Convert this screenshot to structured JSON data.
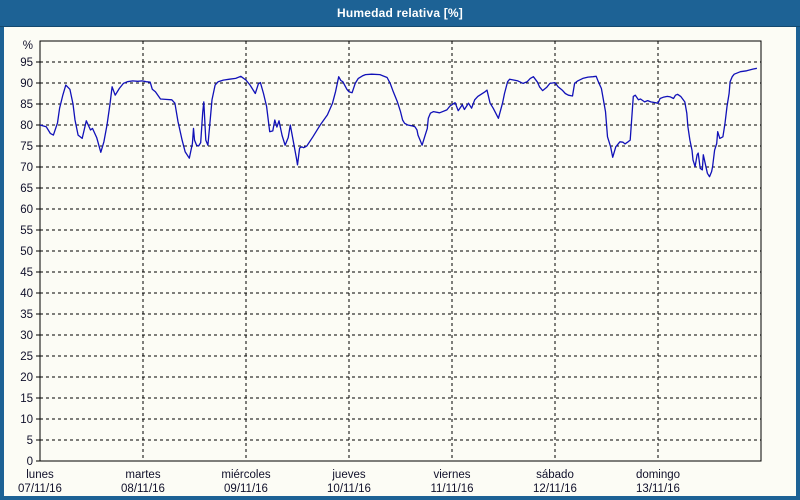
{
  "window": {
    "title": "Humedad relativa [%]"
  },
  "colors": {
    "titlebar_bg": "#1D6295",
    "frame_border": "#1D6295",
    "content_bg": "#FCFCF5",
    "grid": "#000000",
    "axis": "#000000",
    "tick_text": "#10102A",
    "line": "#1111B8"
  },
  "chart_data": {
    "type": "line",
    "title": "Humedad relativa [%]",
    "ylabel": "%",
    "ylim": [
      0,
      100
    ],
    "grid": true,
    "y_ticks": [
      0,
      5,
      10,
      15,
      20,
      25,
      30,
      35,
      40,
      45,
      50,
      55,
      60,
      65,
      70,
      75,
      80,
      85,
      90,
      95
    ],
    "x_days": [
      {
        "name": "lunes",
        "date": "07/11/16"
      },
      {
        "name": "martes",
        "date": "08/11/16"
      },
      {
        "name": "miércoles",
        "date": "09/11/16"
      },
      {
        "name": "jueves",
        "date": "10/11/16"
      },
      {
        "name": "viernes",
        "date": "11/11/16"
      },
      {
        "name": "sábado",
        "date": "12/11/16"
      },
      {
        "name": "domingo",
        "date": "13/11/16"
      }
    ],
    "series": [
      {
        "name": "Humedad relativa [%]",
        "x_unit": "days from lunes 07/11/16 00:00",
        "points": [
          [
            0.0,
            80.0
          ],
          [
            0.06,
            79.6
          ],
          [
            0.1,
            78.0
          ],
          [
            0.13,
            77.6
          ],
          [
            0.17,
            80.5
          ],
          [
            0.19,
            84.0
          ],
          [
            0.22,
            87.0
          ],
          [
            0.25,
            89.5
          ],
          [
            0.29,
            88.5
          ],
          [
            0.32,
            85.0
          ],
          [
            0.34,
            81.2
          ],
          [
            0.37,
            77.6
          ],
          [
            0.41,
            76.8
          ],
          [
            0.45,
            81.0
          ],
          [
            0.49,
            78.8
          ],
          [
            0.51,
            79.2
          ],
          [
            0.55,
            77.0
          ],
          [
            0.59,
            73.5
          ],
          [
            0.62,
            76.0
          ],
          [
            0.65,
            80.0
          ],
          [
            0.68,
            85.0
          ],
          [
            0.7,
            89.1
          ],
          [
            0.73,
            87.1
          ],
          [
            0.77,
            88.7
          ],
          [
            0.81,
            89.9
          ],
          [
            0.85,
            90.3
          ],
          [
            0.9,
            90.5
          ],
          [
            0.95,
            90.4
          ],
          [
            0.99,
            90.5
          ],
          [
            1.03,
            90.3
          ],
          [
            1.07,
            90.2
          ],
          [
            1.09,
            88.5
          ],
          [
            1.12,
            87.9
          ],
          [
            1.17,
            86.2
          ],
          [
            1.22,
            86.1
          ],
          [
            1.28,
            86.0
          ],
          [
            1.31,
            85.2
          ],
          [
            1.34,
            80.8
          ],
          [
            1.38,
            76.4
          ],
          [
            1.41,
            73.6
          ],
          [
            1.45,
            72.1
          ],
          [
            1.48,
            75.6
          ],
          [
            1.49,
            79.2
          ],
          [
            1.5,
            76.4
          ],
          [
            1.52,
            75.2
          ],
          [
            1.54,
            75.0
          ],
          [
            1.56,
            75.8
          ],
          [
            1.58,
            83.0
          ],
          [
            1.59,
            85.5
          ],
          [
            1.61,
            76.4
          ],
          [
            1.63,
            75.2
          ],
          [
            1.65,
            80.4
          ],
          [
            1.67,
            86.0
          ],
          [
            1.7,
            89.5
          ],
          [
            1.73,
            90.3
          ],
          [
            1.78,
            90.7
          ],
          [
            1.84,
            90.9
          ],
          [
            1.9,
            91.1
          ],
          [
            1.95,
            91.6
          ],
          [
            2.0,
            90.7
          ],
          [
            2.04,
            89.5
          ],
          [
            2.07,
            88.3
          ],
          [
            2.09,
            87.5
          ],
          [
            2.12,
            89.8
          ],
          [
            2.14,
            90.1
          ],
          [
            2.17,
            87.5
          ],
          [
            2.2,
            84.4
          ],
          [
            2.23,
            78.4
          ],
          [
            2.26,
            78.6
          ],
          [
            2.28,
            81.2
          ],
          [
            2.3,
            79.5
          ],
          [
            2.32,
            81.0
          ],
          [
            2.35,
            77.5
          ],
          [
            2.38,
            75.2
          ],
          [
            2.41,
            77.0
          ],
          [
            2.43,
            80.0
          ],
          [
            2.46,
            76.0
          ],
          [
            2.49,
            72.0
          ],
          [
            2.5,
            70.5
          ],
          [
            2.52,
            74.5
          ],
          [
            2.54,
            74.8
          ],
          [
            2.56,
            74.6
          ],
          [
            2.59,
            75.0
          ],
          [
            2.65,
            77.2
          ],
          [
            2.72,
            80.0
          ],
          [
            2.79,
            82.4
          ],
          [
            2.84,
            85.2
          ],
          [
            2.87,
            88.0
          ],
          [
            2.9,
            91.5
          ],
          [
            2.92,
            90.6
          ],
          [
            2.94,
            90.3
          ],
          [
            2.98,
            88.5
          ],
          [
            3.0,
            87.9
          ],
          [
            3.03,
            87.7
          ],
          [
            3.06,
            89.9
          ],
          [
            3.09,
            91.1
          ],
          [
            3.13,
            91.7
          ],
          [
            3.16,
            92.0
          ],
          [
            3.22,
            92.1
          ],
          [
            3.3,
            92.0
          ],
          [
            3.33,
            91.7
          ],
          [
            3.37,
            91.3
          ],
          [
            3.4,
            89.9
          ],
          [
            3.43,
            87.9
          ],
          [
            3.47,
            85.5
          ],
          [
            3.5,
            83.2
          ],
          [
            3.52,
            81.2
          ],
          [
            3.54,
            80.4
          ],
          [
            3.57,
            80.0
          ],
          [
            3.61,
            79.8
          ],
          [
            3.64,
            79.6
          ],
          [
            3.66,
            78.8
          ],
          [
            3.67,
            77.6
          ],
          [
            3.69,
            76.4
          ],
          [
            3.71,
            75.2
          ],
          [
            3.74,
            77.6
          ],
          [
            3.76,
            79.2
          ],
          [
            3.77,
            81.6
          ],
          [
            3.79,
            82.8
          ],
          [
            3.82,
            83.2
          ],
          [
            3.88,
            82.9
          ],
          [
            3.95,
            83.6
          ],
          [
            3.98,
            84.5
          ],
          [
            4.03,
            85.3
          ],
          [
            4.06,
            83.4
          ],
          [
            4.1,
            84.8
          ],
          [
            4.12,
            83.7
          ],
          [
            4.16,
            85.2
          ],
          [
            4.19,
            84.0
          ],
          [
            4.22,
            86.0
          ],
          [
            4.25,
            86.8
          ],
          [
            4.32,
            87.9
          ],
          [
            4.34,
            88.3
          ],
          [
            4.37,
            85.2
          ],
          [
            4.4,
            84.0
          ],
          [
            4.45,
            81.6
          ],
          [
            4.49,
            85.2
          ],
          [
            4.51,
            87.5
          ],
          [
            4.54,
            90.3
          ],
          [
            4.56,
            90.9
          ],
          [
            4.64,
            90.5
          ],
          [
            4.69,
            89.9
          ],
          [
            4.73,
            90.3
          ],
          [
            4.76,
            91.1
          ],
          [
            4.79,
            91.5
          ],
          [
            4.83,
            90.2
          ],
          [
            4.85,
            89.1
          ],
          [
            4.88,
            88.2
          ],
          [
            4.92,
            89.0
          ],
          [
            4.95,
            89.9
          ],
          [
            5.0,
            90.1
          ],
          [
            5.03,
            89.1
          ],
          [
            5.07,
            88.3
          ],
          [
            5.1,
            87.5
          ],
          [
            5.13,
            87.1
          ],
          [
            5.17,
            86.9
          ],
          [
            5.19,
            89.9
          ],
          [
            5.22,
            90.5
          ],
          [
            5.27,
            91.1
          ],
          [
            5.32,
            91.4
          ],
          [
            5.37,
            91.5
          ],
          [
            5.4,
            91.6
          ],
          [
            5.42,
            90.3
          ],
          [
            5.45,
            88.7
          ],
          [
            5.49,
            83.2
          ],
          [
            5.51,
            77.2
          ],
          [
            5.54,
            74.8
          ],
          [
            5.56,
            72.3
          ],
          [
            5.59,
            74.8
          ],
          [
            5.63,
            76.0
          ],
          [
            5.66,
            75.9
          ],
          [
            5.68,
            75.5
          ],
          [
            5.71,
            76.0
          ],
          [
            5.73,
            76.4
          ],
          [
            5.76,
            86.8
          ],
          [
            5.78,
            87.1
          ],
          [
            5.81,
            86.0
          ],
          [
            5.83,
            86.2
          ],
          [
            5.87,
            85.5
          ],
          [
            5.9,
            85.8
          ],
          [
            5.93,
            85.5
          ],
          [
            6.0,
            85.2
          ],
          [
            6.02,
            86.3
          ],
          [
            6.05,
            86.6
          ],
          [
            6.09,
            86.8
          ],
          [
            6.12,
            86.7
          ],
          [
            6.15,
            86.3
          ],
          [
            6.17,
            87.1
          ],
          [
            6.19,
            87.3
          ],
          [
            6.22,
            86.8
          ],
          [
            6.26,
            85.5
          ],
          [
            6.28,
            82.8
          ],
          [
            6.29,
            79.6
          ],
          [
            6.31,
            76.4
          ],
          [
            6.33,
            74.0
          ],
          [
            6.34,
            71.7
          ],
          [
            6.36,
            70.1
          ],
          [
            6.38,
            72.9
          ],
          [
            6.39,
            73.3
          ],
          [
            6.41,
            69.7
          ],
          [
            6.43,
            69.3
          ],
          [
            6.44,
            72.9
          ],
          [
            6.48,
            68.5
          ],
          [
            6.5,
            67.7
          ],
          [
            6.52,
            68.9
          ],
          [
            6.53,
            70.1
          ],
          [
            6.55,
            74.0
          ],
          [
            6.57,
            75.6
          ],
          [
            6.58,
            78.4
          ],
          [
            6.6,
            76.8
          ],
          [
            6.63,
            77.2
          ],
          [
            6.65,
            80.4
          ],
          [
            6.67,
            84.4
          ],
          [
            6.69,
            87.5
          ],
          [
            6.7,
            90.3
          ],
          [
            6.72,
            91.5
          ],
          [
            6.74,
            92.1
          ],
          [
            6.8,
            92.7
          ],
          [
            6.86,
            92.9
          ],
          [
            6.92,
            93.3
          ],
          [
            6.96,
            93.5
          ]
        ]
      }
    ]
  }
}
